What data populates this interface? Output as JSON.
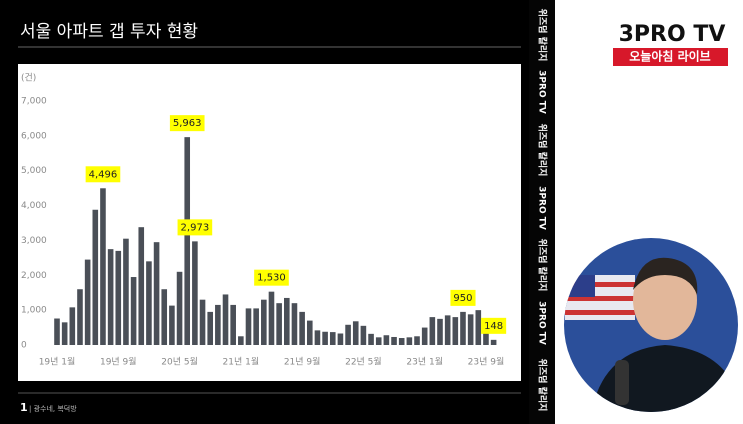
{
  "chart_data": {
    "type": "bar",
    "title": "서울 아파트 갭 투자 현황",
    "y_unit": "(건)",
    "categories": [
      "19년 1월",
      null,
      null,
      null,
      null,
      null,
      null,
      null,
      "19년 9월",
      null,
      null,
      null,
      null,
      null,
      null,
      null,
      "20년 5월",
      null,
      null,
      null,
      null,
      null,
      null,
      null,
      "21년 1월",
      null,
      null,
      null,
      null,
      null,
      null,
      null,
      "21년 9월",
      null,
      null,
      null,
      null,
      null,
      null,
      null,
      "22년 5월",
      null,
      null,
      null,
      null,
      null,
      null,
      null,
      "23년 1월",
      null,
      null,
      null,
      null,
      null,
      null,
      null,
      "23년 9월",
      null
    ],
    "values": [
      760,
      650,
      1080,
      1600,
      2450,
      3880,
      4496,
      2750,
      2700,
      3050,
      1950,
      3380,
      2400,
      2950,
      1600,
      1130,
      2100,
      5963,
      2973,
      1300,
      950,
      1150,
      1450,
      1150,
      250,
      1050,
      1050,
      1300,
      1530,
      1200,
      1350,
      1200,
      950,
      700,
      420,
      380,
      370,
      330,
      580,
      680,
      550,
      320,
      220,
      280,
      230,
      200,
      220,
      250,
      500,
      800,
      750,
      850,
      800,
      950,
      880,
      1000,
      400,
      148
    ],
    "value_labels": [
      null,
      null,
      null,
      null,
      null,
      null,
      "4,496",
      null,
      null,
      null,
      null,
      null,
      null,
      null,
      null,
      null,
      null,
      "5,963",
      "2,973",
      null,
      null,
      null,
      null,
      null,
      null,
      null,
      null,
      null,
      "1,530",
      null,
      null,
      null,
      null,
      null,
      null,
      null,
      null,
      null,
      null,
      null,
      null,
      null,
      null,
      null,
      null,
      null,
      null,
      null,
      null,
      null,
      null,
      null,
      null,
      "950",
      null,
      null,
      null,
      "148"
    ],
    "color": "#4a4f57",
    "label_color": "#ffff00",
    "ylim": [
      0,
      7000
    ],
    "yticks": [
      0,
      {
        "value": 1000,
        "label": "1,000"
      },
      {
        "value": 2000,
        "label": "2,000"
      },
      {
        "value": 3000,
        "label": "3,000"
      },
      {
        "value": 4000,
        "label": "4,000"
      },
      {
        "value": 5000,
        "label": "5,000"
      },
      {
        "value": 6000,
        "label": "6,000"
      },
      {
        "value": 7000,
        "label": "7,000"
      }
    ],
    "grid": false
  },
  "footer": {
    "page": "1",
    "source": "| 광수네, 복덕방"
  },
  "side_strip": [
    "위즈덤 칼리지",
    "3PRO TV",
    "위즈덤 칼리지",
    "3PRO TV",
    "위즈덤 칼리지",
    "3PRO TV",
    "위즈덤 칼리지"
  ],
  "logo": {
    "brand": "3PRO TV",
    "program": "오늘아침 라이브"
  }
}
